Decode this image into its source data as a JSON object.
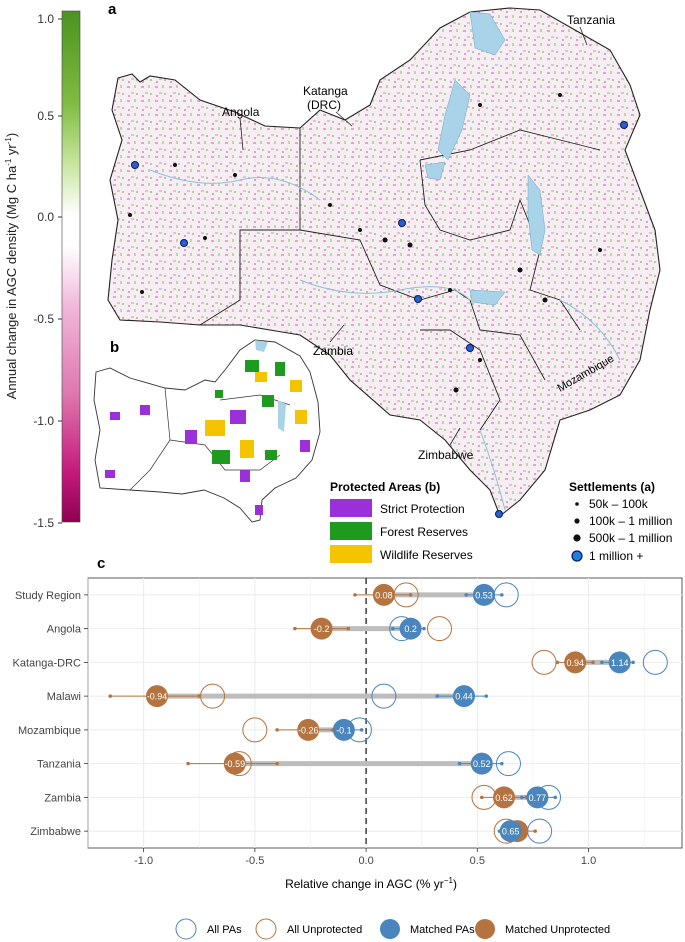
{
  "panel_labels": {
    "a": "a",
    "b": "b",
    "c": "c"
  },
  "colorbar": {
    "label_main": "Annual change in AGC density (Mg C ha",
    "label_sup1": "-1",
    "label_mid": " yr",
    "label_sup2": "-1",
    "label_end": ")",
    "ticks": [
      "1.0",
      "0.5",
      "0.0",
      "-0.5",
      "-1.0",
      "-1.5"
    ],
    "colors": {
      "positive": "#4d9221",
      "neutral": "#ffffff",
      "negative": "#8e0152"
    }
  },
  "map_labels": {
    "angola": "Angola",
    "katanga_1": "Katanga",
    "katanga_2": "(DRC)",
    "tanzania": "Tanzania",
    "zambia": "Zambia",
    "mozambique": "Mozambique",
    "zimbabwe": "Zimbabwe"
  },
  "protected_legend": {
    "title": "Protected Areas (b)",
    "items": [
      {
        "label": "Strict Protection",
        "color": "#9b30d9"
      },
      {
        "label": "Forest Reserves",
        "color": "#1e9a1e"
      },
      {
        "label": "Wildlife Reserves",
        "color": "#f5c400"
      }
    ]
  },
  "settlement_legend": {
    "title": "Settlements (a)",
    "items": [
      {
        "label": "50k – 100k",
        "marker": "tiny-dot"
      },
      {
        "label": "100k – 1 million",
        "marker": "small-dot"
      },
      {
        "label": "500k – 1 million",
        "marker": "large-dot"
      },
      {
        "label": "1 million +",
        "marker": "blue-circle"
      }
    ]
  },
  "chart_data": {
    "type": "scatter",
    "xlabel": "Relative change in AGC (% yr",
    "xlabel_sup": "−1",
    "xlabel_end": ")",
    "xlim": [
      -1.25,
      1.42
    ],
    "xticks": [
      -1.0,
      -0.5,
      0.0,
      0.5,
      1.0
    ],
    "xtick_labels": [
      "-1.0",
      "-0.5",
      "0.0",
      "0.5",
      "1.0"
    ],
    "grid": true,
    "legend_position": "bottom",
    "colors": {
      "pa": "#4a86bd",
      "unprotected": "#b5733f"
    },
    "categories": [
      "Study Region",
      "Angola",
      "Katanga-DRC",
      "Malawi",
      "Mozambique",
      "Tanzania",
      "Zambia",
      "Zimbabwe"
    ],
    "series": [
      {
        "name": "All PAs",
        "values": [
          0.63,
          0.16,
          1.3,
          0.08,
          -0.03,
          0.64,
          0.82,
          0.78
        ]
      },
      {
        "name": "All Unprotected",
        "values": [
          0.18,
          0.33,
          0.8,
          -0.69,
          -0.5,
          -0.57,
          0.53,
          0.63
        ]
      },
      {
        "name": "Matched PAs",
        "values": [
          0.53,
          0.2,
          1.14,
          0.44,
          -0.1,
          0.52,
          0.77,
          0.65
        ]
      },
      {
        "name": "Matched Unprotected",
        "values": [
          0.08,
          -0.2,
          0.94,
          -0.94,
          -0.26,
          -0.59,
          0.62,
          0.68
        ]
      }
    ],
    "labels": {
      "matched_pa": [
        "0.53",
        "0.2",
        "1.14",
        "0.44",
        "-0.1",
        "0.52",
        "0.77",
        "0.65"
      ],
      "matched_unprotected": [
        "0.08",
        "-0.2",
        "0.94",
        "-0.94",
        "-0.26",
        "-0.59",
        "0.62",
        ""
      ]
    },
    "ci_pa": [
      [
        0.45,
        0.61
      ],
      [
        0.12,
        0.26
      ],
      [
        1.06,
        1.2
      ],
      [
        0.32,
        0.54
      ],
      [
        -0.14,
        -0.02
      ],
      [
        0.42,
        0.61
      ],
      [
        0.7,
        0.85
      ],
      [
        0.6,
        0.72
      ]
    ],
    "ci_unprotected": [
      [
        -0.05,
        0.2
      ],
      [
        -0.32,
        -0.08
      ],
      [
        0.86,
        1.02
      ],
      [
        -1.15,
        -0.75
      ],
      [
        -0.4,
        -0.15
      ],
      [
        -0.8,
        -0.4
      ],
      [
        0.52,
        0.72
      ],
      [
        0.6,
        0.76
      ]
    ]
  }
}
